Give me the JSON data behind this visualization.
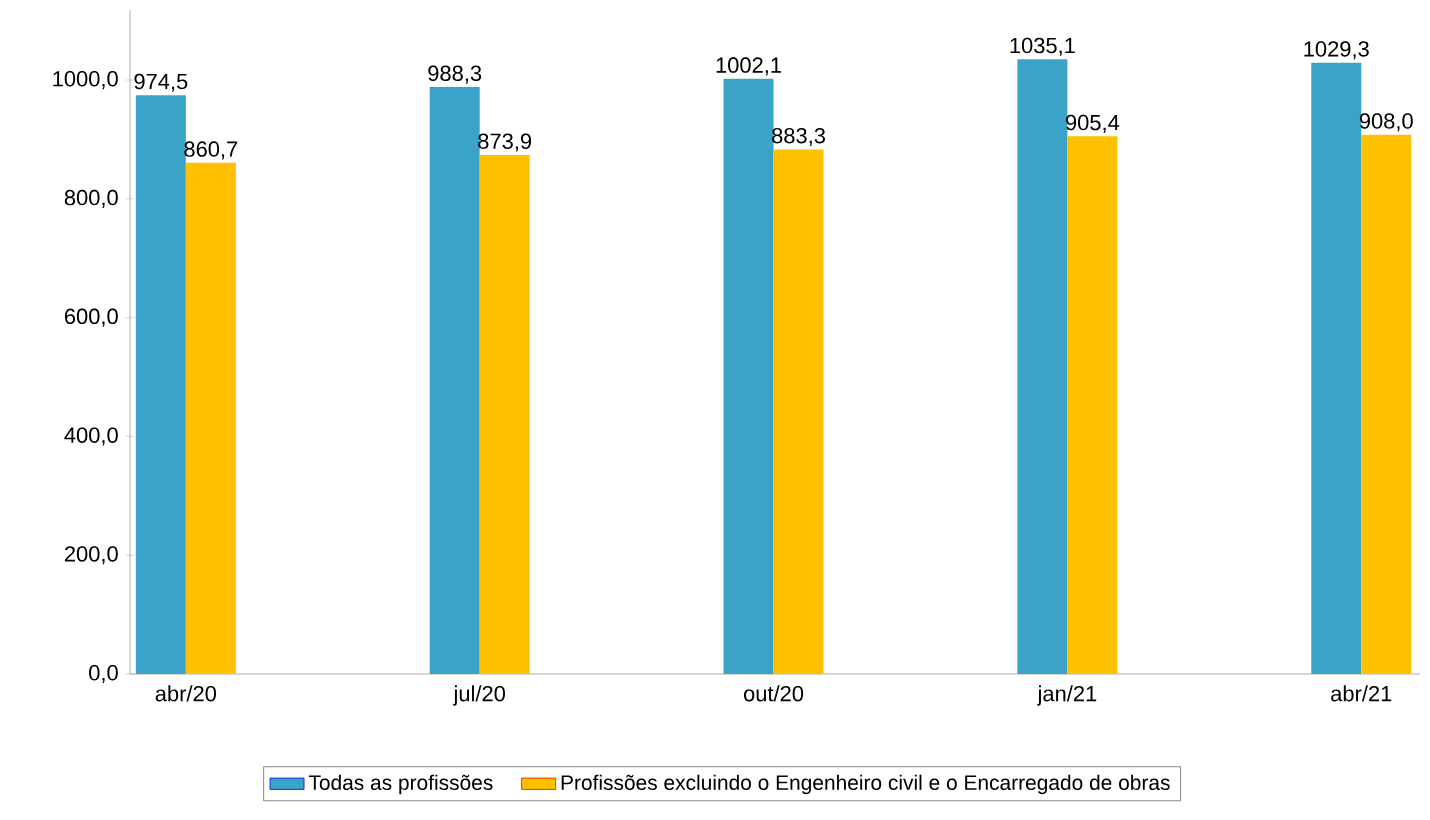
{
  "chart_data": {
    "type": "bar",
    "categories": [
      "abr/20",
      "jul/20",
      "out/20",
      "jan/21",
      "abr/21"
    ],
    "series": [
      {
        "name": "Todas as profissões",
        "color": "#3ba3c7",
        "values": [
          974.5,
          988.3,
          1002.1,
          1035.1,
          1029.3
        ],
        "value_labels": [
          "974,5",
          "988,3",
          "1002,1",
          "1035,1",
          "1029,3"
        ]
      },
      {
        "name": "Profissões excluindo o Engenheiro civil e o Encarregado de obras",
        "color": "#ffc000",
        "values": [
          860.7,
          873.9,
          883.3,
          905.4,
          908.0
        ],
        "value_labels": [
          "860,7",
          "873,9",
          "883,3",
          "905,4",
          "908,0"
        ]
      }
    ],
    "ylim": [
      0,
      1118
    ],
    "yticks": [
      {
        "value": 0,
        "label": "0,0"
      },
      {
        "value": 200,
        "label": "200,0"
      },
      {
        "value": 400,
        "label": "400,0"
      },
      {
        "value": 600,
        "label": "600,0"
      },
      {
        "value": 800,
        "label": "800,0"
      },
      {
        "value": 1000,
        "label": "1000,0"
      }
    ],
    "grid": false,
    "legend": "bottom"
  }
}
